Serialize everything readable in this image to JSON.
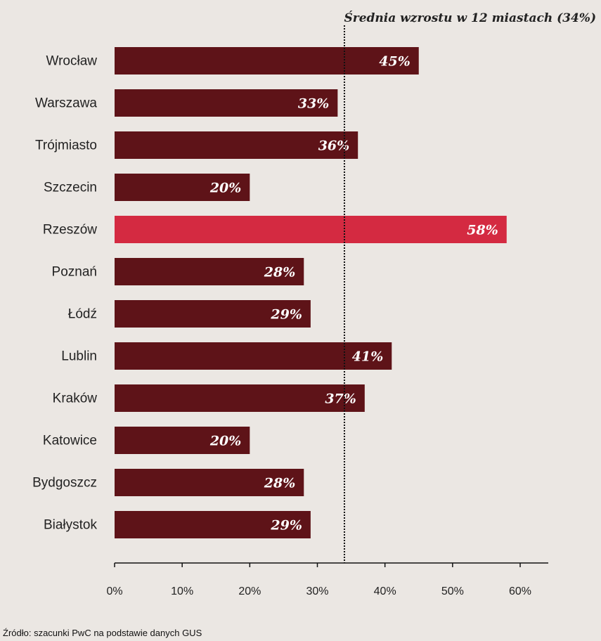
{
  "chart_data": {
    "type": "bar",
    "orientation": "horizontal",
    "categories": [
      "Wrocław",
      "Warszawa",
      "Trójmiasto",
      "Szczecin",
      "Rzeszów",
      "Poznań",
      "Łódź",
      "Lublin",
      "Kraków",
      "Katowice",
      "Bydgoszcz",
      "Białystok"
    ],
    "values": [
      45,
      33,
      36,
      20,
      58,
      28,
      29,
      41,
      37,
      20,
      28,
      29
    ],
    "value_labels": [
      "45%",
      "33%",
      "36%",
      "20%",
      "58%",
      "28%",
      "29%",
      "41%",
      "37%",
      "20%",
      "28%",
      "29%"
    ],
    "highlight_category": "Rzeszów",
    "xlim": [
      0,
      60
    ],
    "x_ticks": [
      0,
      10,
      20,
      30,
      40,
      50,
      60
    ],
    "x_tick_labels": [
      "0%",
      "10%",
      "20%",
      "30%",
      "40%",
      "50%",
      "60%"
    ],
    "reference_line": {
      "value": 34,
      "label": "Średnia wzrostu w 12 miastach (34%)"
    },
    "source": "Źródło: szacunki PwC na podstawie danych GUS",
    "grid": false,
    "legend": "none",
    "colors": {
      "bar": "#5e1318",
      "highlight": "#d42a41",
      "background": "#ebe7e3",
      "text": "#222222",
      "label_text": "#ffffff"
    }
  }
}
